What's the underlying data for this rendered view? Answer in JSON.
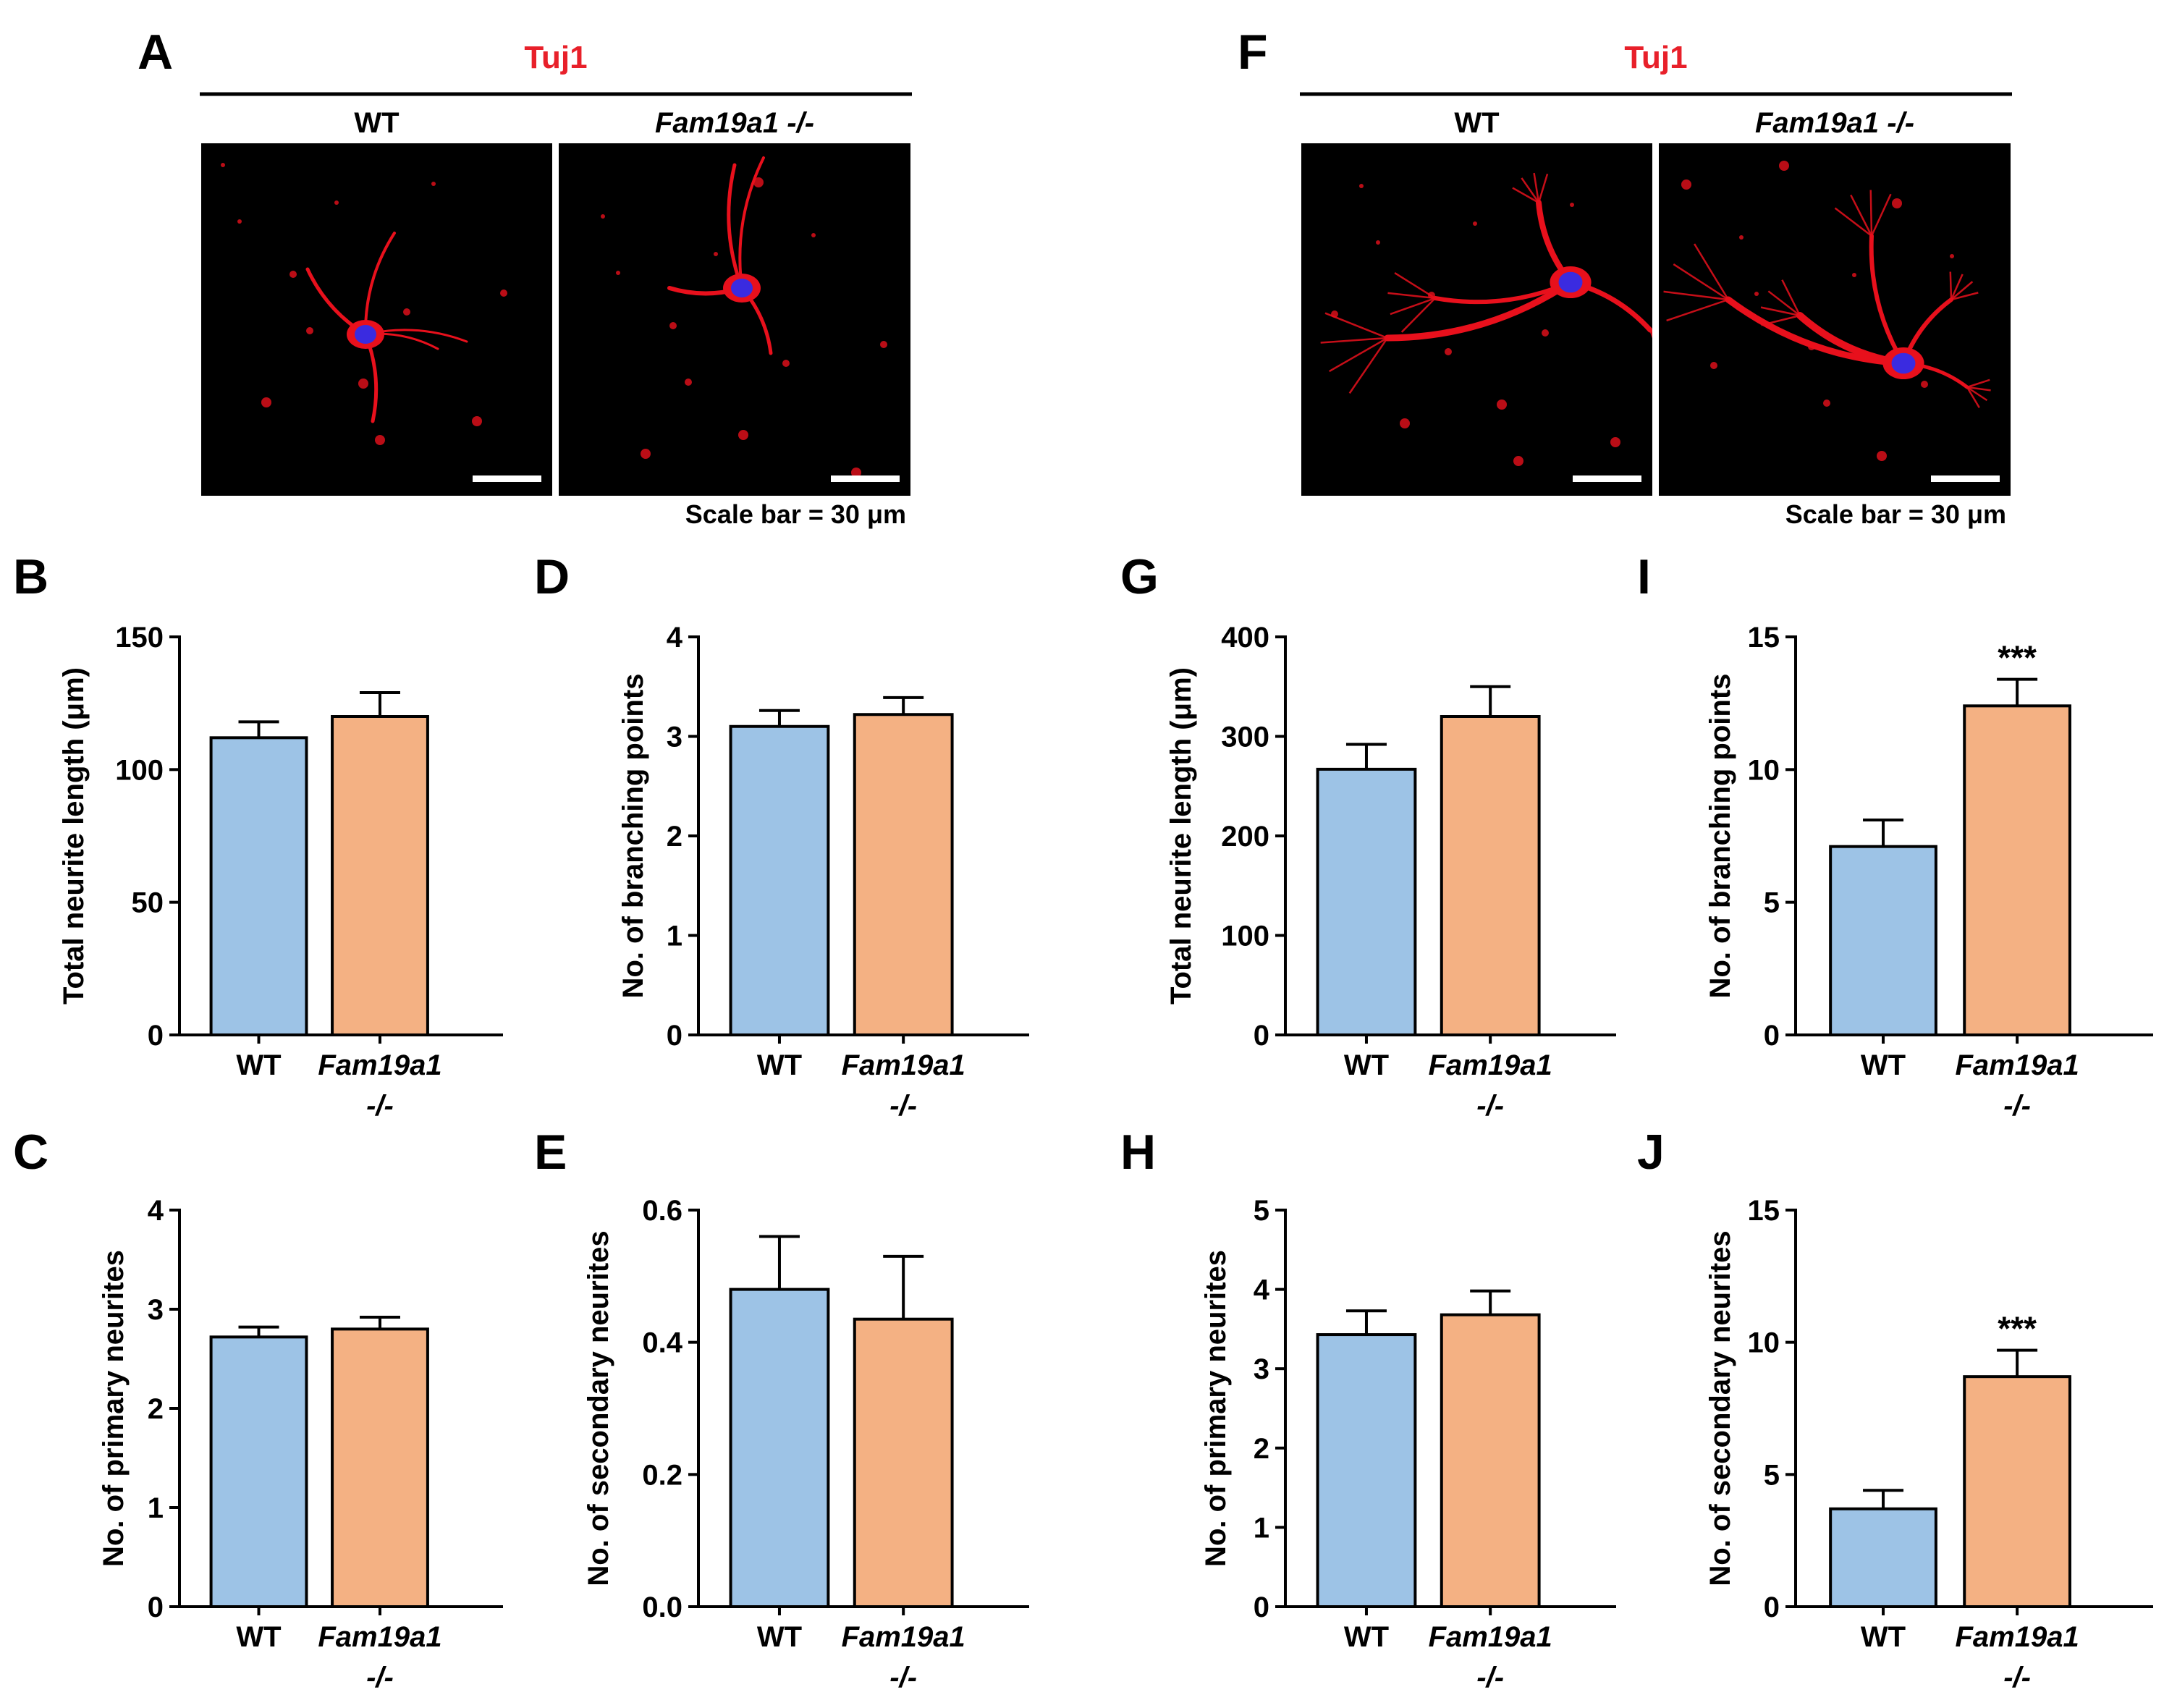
{
  "colors": {
    "wt_bar": "#9DC3E6",
    "ko_bar": "#F4B183",
    "title_red": "#E8202A",
    "image_bg": "#000000",
    "neuron": "#E8101C",
    "nucleus": "#3A2BE0"
  },
  "image_panels": [
    {
      "letter": "A",
      "stain": "Tuj1",
      "columns": [
        {
          "label": "WT",
          "italic": false
        },
        {
          "label": "Fam19a1 -/-",
          "italic": true
        }
      ],
      "scale_bar_text": "Scale bar = 30 μm"
    },
    {
      "letter": "F",
      "stain": "Tuj1",
      "columns": [
        {
          "label": "WT",
          "italic": false
        },
        {
          "label": "Fam19a1 -/-",
          "italic": true
        }
      ],
      "scale_bar_text": "Scale bar = 30 μm"
    }
  ],
  "chart_data": [
    {
      "letter": "B",
      "type": "bar",
      "ylabel": "Total neurite length (μm)",
      "categories": [
        "WT",
        "Fam19a1 -/-"
      ],
      "values": [
        112,
        120
      ],
      "errors": [
        6,
        9
      ],
      "ylim": [
        0,
        150
      ],
      "yticks": [
        "0",
        "50",
        "100",
        "150"
      ],
      "significance": [
        "",
        ""
      ]
    },
    {
      "letter": "C",
      "type": "bar",
      "ylabel": "No. of primary neurites",
      "categories": [
        "WT",
        "Fam19a1 -/-"
      ],
      "values": [
        2.72,
        2.8
      ],
      "errors": [
        0.1,
        0.12
      ],
      "ylim": [
        0,
        4
      ],
      "yticks": [
        "0",
        "1",
        "2",
        "3",
        "4"
      ],
      "significance": [
        "",
        ""
      ]
    },
    {
      "letter": "D",
      "type": "bar",
      "ylabel": "No. of branching points",
      "categories": [
        "WT",
        "Fam19a1 -/-"
      ],
      "values": [
        3.1,
        3.22
      ],
      "errors": [
        0.16,
        0.17
      ],
      "ylim": [
        0,
        4
      ],
      "yticks": [
        "0",
        "1",
        "2",
        "3",
        "4"
      ],
      "significance": [
        "",
        ""
      ]
    },
    {
      "letter": "E",
      "type": "bar",
      "ylabel": "No. of secondary neurites",
      "categories": [
        "WT",
        "Fam19a1 -/-"
      ],
      "values": [
        0.48,
        0.435
      ],
      "errors": [
        0.08,
        0.095
      ],
      "ylim": [
        0,
        0.6
      ],
      "yticks": [
        "0.0",
        "0.2",
        "0.4",
        "0.6"
      ],
      "significance": [
        "",
        ""
      ]
    },
    {
      "letter": "G",
      "type": "bar",
      "ylabel": "Total neurite length (μm)",
      "categories": [
        "WT",
        "Fam19a1 -/-"
      ],
      "values": [
        267,
        320
      ],
      "errors": [
        25,
        30
      ],
      "ylim": [
        0,
        400
      ],
      "yticks": [
        "0",
        "100",
        "200",
        "300",
        "400"
      ],
      "significance": [
        "",
        ""
      ]
    },
    {
      "letter": "H",
      "type": "bar",
      "ylabel": "No. of primary neurites",
      "categories": [
        "WT",
        "Fam19a1 -/-"
      ],
      "values": [
        3.43,
        3.68
      ],
      "errors": [
        0.3,
        0.3
      ],
      "ylim": [
        0,
        5
      ],
      "yticks": [
        "0",
        "1",
        "2",
        "3",
        "4",
        "5"
      ],
      "significance": [
        "",
        ""
      ]
    },
    {
      "letter": "I",
      "type": "bar",
      "ylabel": "No. of branching points",
      "categories": [
        "WT",
        "Fam19a1 -/-"
      ],
      "values": [
        7.1,
        12.4
      ],
      "errors": [
        1.0,
        1.0
      ],
      "ylim": [
        0,
        15
      ],
      "yticks": [
        "0",
        "5",
        "10",
        "15"
      ],
      "significance": [
        "",
        "***"
      ]
    },
    {
      "letter": "J",
      "type": "bar",
      "ylabel": "No. of secondary neurites",
      "categories": [
        "WT",
        "Fam19a1 -/-"
      ],
      "values": [
        3.7,
        8.7
      ],
      "errors": [
        0.7,
        1.0
      ],
      "ylim": [
        0,
        15
      ],
      "yticks": [
        "0",
        "5",
        "10",
        "15"
      ],
      "significance": [
        "",
        "***"
      ]
    }
  ]
}
